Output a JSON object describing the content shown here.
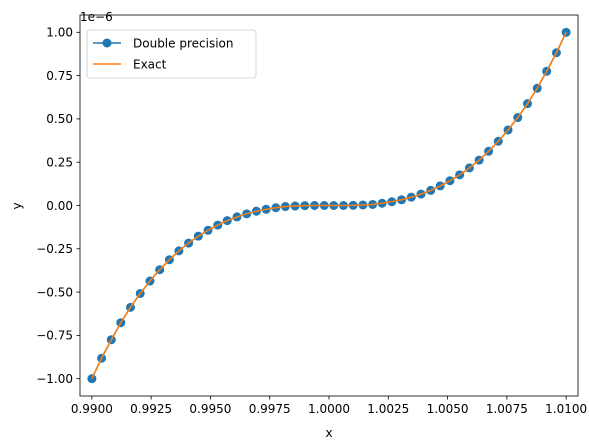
{
  "chart_data": {
    "type": "line",
    "title": "",
    "xlabel": "x",
    "ylabel": "y",
    "y_scale_label": "1e−6",
    "xlim": [
      0.9895,
      1.0105
    ],
    "ylim": [
      -1.1,
      1.1
    ],
    "x_ticks": [
      0.99,
      0.9925,
      0.995,
      0.9975,
      1.0,
      1.0025,
      1.005,
      1.0075,
      1.01
    ],
    "x_tick_labels": [
      "0.9900",
      "0.9925",
      "0.9950",
      "0.9975",
      "1.0000",
      "1.0025",
      "1.0050",
      "1.0075",
      "1.0100"
    ],
    "y_ticks": [
      -1.0,
      -0.75,
      -0.5,
      -0.25,
      0.0,
      0.25,
      0.5,
      0.75,
      1.0
    ],
    "y_tick_labels": [
      "−1.00",
      "−0.75",
      "−0.50",
      "−0.25",
      "0.00",
      "0.25",
      "0.50",
      "0.75",
      "1.00"
    ],
    "grid": false,
    "legend_position": "top-left",
    "x": [
      0.99,
      0.99041,
      0.99082,
      0.99122,
      0.99163,
      0.99204,
      0.99245,
      0.99286,
      0.99327,
      0.99367,
      0.99408,
      0.99449,
      0.9949,
      0.99531,
      0.99571,
      0.99612,
      0.99653,
      0.99694,
      0.99735,
      0.99776,
      0.99816,
      0.99857,
      0.99898,
      0.99939,
      0.9998,
      1.0002,
      1.00061,
      1.00102,
      1.00143,
      1.00184,
      1.00224,
      1.00265,
      1.00306,
      1.00347,
      1.00388,
      1.00429,
      1.00469,
      1.0051,
      1.00551,
      1.00592,
      1.00633,
      1.00673,
      1.00714,
      1.00755,
      1.00796,
      1.00837,
      1.00878,
      1.00918,
      1.00959,
      1.01
    ],
    "series": [
      {
        "name": "Double precision",
        "color": "#1f77b4",
        "marker": "circle",
        "values": [
          -1.0,
          -0.882,
          -0.775,
          -0.677,
          -0.588,
          -0.508,
          -0.436,
          -0.371,
          -0.313,
          -0.262,
          -0.217,
          -0.177,
          -0.143,
          -0.113,
          -0.087,
          -0.066,
          -0.048,
          -0.033,
          -0.022,
          -0.013,
          -0.006,
          -0.003,
          -0.001,
          0.0,
          0.0,
          0.0,
          0.0,
          0.001,
          0.003,
          0.006,
          0.013,
          0.022,
          0.033,
          0.048,
          0.066,
          0.087,
          0.113,
          0.143,
          0.177,
          0.217,
          0.262,
          0.313,
          0.371,
          0.436,
          0.508,
          0.588,
          0.677,
          0.775,
          0.882,
          1.0
        ]
      },
      {
        "name": "Exact",
        "color": "#ff7f0e",
        "marker": "none",
        "values": [
          -1.0,
          -0.882,
          -0.775,
          -0.677,
          -0.588,
          -0.508,
          -0.436,
          -0.371,
          -0.313,
          -0.262,
          -0.217,
          -0.177,
          -0.143,
          -0.113,
          -0.087,
          -0.066,
          -0.048,
          -0.033,
          -0.022,
          -0.013,
          -0.006,
          -0.003,
          -0.001,
          0.0,
          0.0,
          0.0,
          0.0,
          0.001,
          0.003,
          0.006,
          0.013,
          0.022,
          0.033,
          0.048,
          0.066,
          0.087,
          0.113,
          0.143,
          0.177,
          0.217,
          0.262,
          0.313,
          0.371,
          0.436,
          0.508,
          0.588,
          0.677,
          0.775,
          0.882,
          1.0
        ]
      }
    ]
  }
}
